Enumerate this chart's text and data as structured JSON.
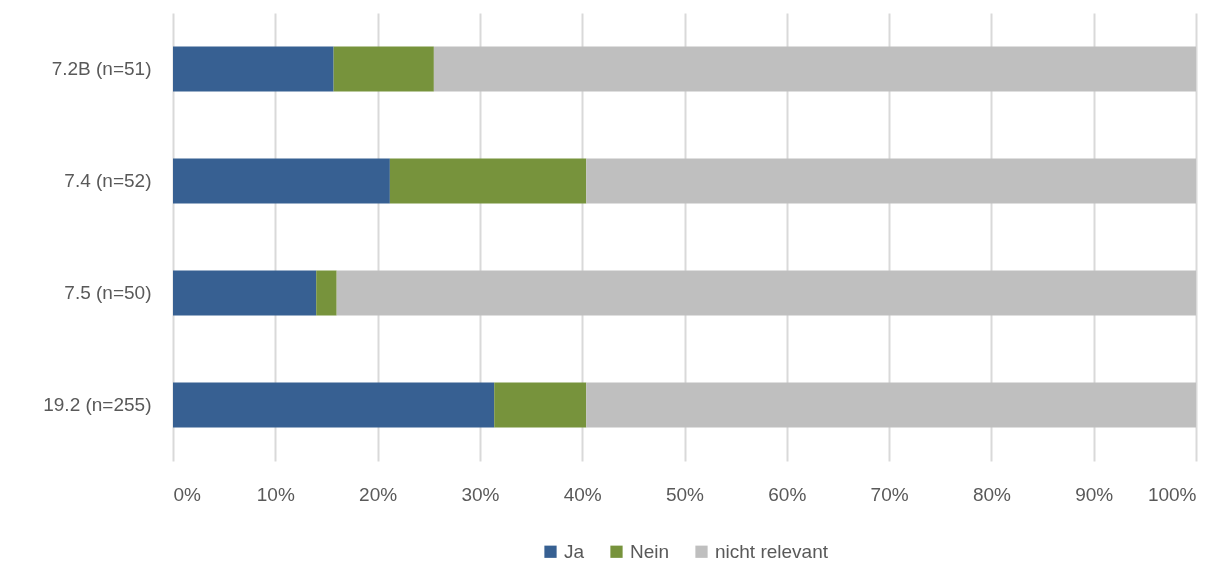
{
  "chart_data": {
    "type": "bar",
    "orientation": "horizontal",
    "stacked": true,
    "categories": [
      "7.2B (n=51)",
      "7.4 (n=52)",
      "7.5 (n=50)",
      "19.2 (n=255)"
    ],
    "series": [
      {
        "name": "Ja",
        "color": "#376092",
        "values": [
          15.7,
          21.2,
          14,
          31.4
        ]
      },
      {
        "name": "Nein",
        "color": "#77933c",
        "values": [
          9.8,
          19.2,
          2,
          9
        ]
      },
      {
        "name": "nicht relevant",
        "color": "#bfbfbf",
        "values": [
          74.5,
          59.6,
          84,
          59.6
        ]
      }
    ],
    "xlim": [
      0,
      100
    ],
    "xticks": [
      {
        "value": 0,
        "label": "0%"
      },
      {
        "value": 10,
        "label": "10%"
      },
      {
        "value": 20,
        "label": "20%"
      },
      {
        "value": 30,
        "label": "30%"
      },
      {
        "value": 40,
        "label": "40%"
      },
      {
        "value": 50,
        "label": "50%"
      },
      {
        "value": 60,
        "label": "60%"
      },
      {
        "value": 70,
        "label": "70%"
      },
      {
        "value": 80,
        "label": "80%"
      },
      {
        "value": 90,
        "label": "90%"
      },
      {
        "value": 100,
        "label": "100%"
      }
    ],
    "grid": "x",
    "legend": "bottom"
  }
}
